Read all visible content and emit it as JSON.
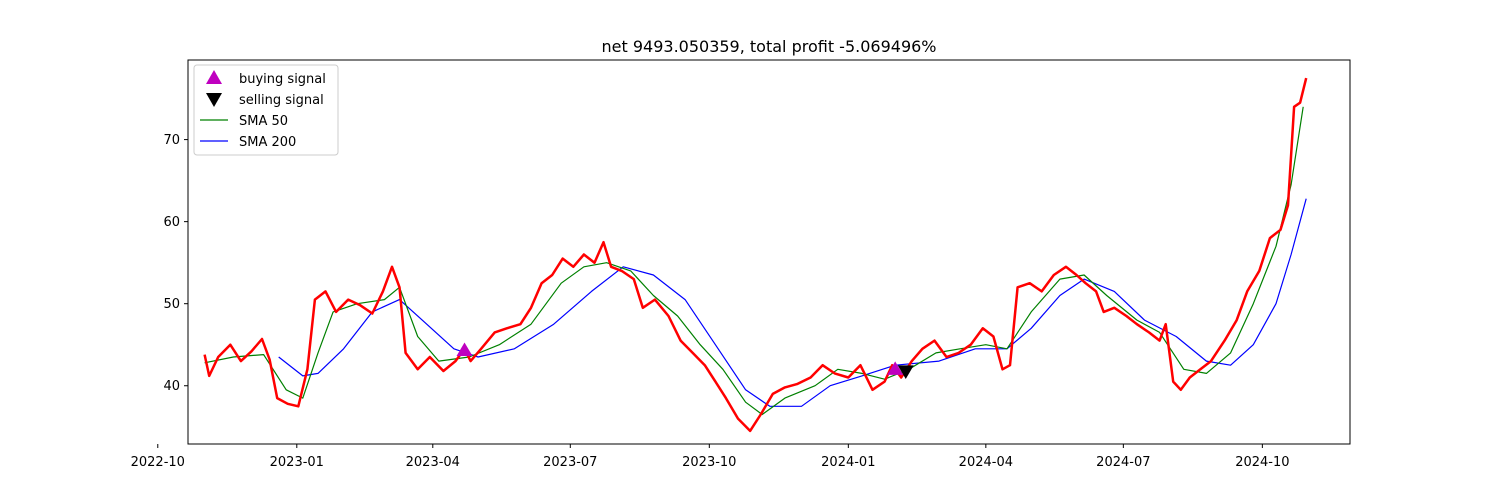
{
  "chart_data": {
    "type": "line",
    "title": "net 9493.050359, total profit -5.069496%",
    "xlabel": "",
    "ylabel": "",
    "xlim": [
      "2022-10-21",
      "2024-11-28"
    ],
    "ylim": [
      32.9,
      79.7
    ],
    "x_ticks": [
      "2022-10",
      "2023-01",
      "2023-04",
      "2023-07",
      "2023-10",
      "2024-01",
      "2024-04",
      "2024-07",
      "2024-10"
    ],
    "y_ticks": [
      40,
      50,
      60,
      70
    ],
    "grid": false,
    "legend": {
      "position": "upper-left",
      "entries": [
        {
          "label": "buying signal",
          "kind": "marker-up",
          "color": "#bf00bf"
        },
        {
          "label": "selling signal",
          "kind": "marker-down",
          "color": "#000000"
        },
        {
          "label": "SMA 50",
          "kind": "line",
          "color": "#008000"
        },
        {
          "label": "SMA 200",
          "kind": "line",
          "color": "#0000ff"
        }
      ]
    },
    "series": [
      {
        "kind": "price",
        "color": "#ff0000",
        "points": [
          [
            "2022-11-01",
            43.8
          ],
          [
            "2022-11-04",
            41.2
          ],
          [
            "2022-11-10",
            43.5
          ],
          [
            "2022-11-18",
            45.0
          ],
          [
            "2022-11-25",
            43.0
          ],
          [
            "2022-12-02",
            44.2
          ],
          [
            "2022-12-09",
            45.7
          ],
          [
            "2022-12-14",
            43.2
          ],
          [
            "2022-12-19",
            38.5
          ],
          [
            "2022-12-26",
            37.8
          ],
          [
            "2023-01-02",
            37.5
          ],
          [
            "2023-01-08",
            42.0
          ],
          [
            "2023-01-13",
            50.5
          ],
          [
            "2023-01-20",
            51.5
          ],
          [
            "2023-01-27",
            49.0
          ],
          [
            "2023-02-04",
            50.5
          ],
          [
            "2023-02-12",
            49.8
          ],
          [
            "2023-02-20",
            48.8
          ],
          [
            "2023-02-27",
            51.5
          ],
          [
            "2023-03-05",
            54.5
          ],
          [
            "2023-03-10",
            52.0
          ],
          [
            "2023-03-14",
            44.0
          ],
          [
            "2023-03-22",
            42.0
          ],
          [
            "2023-03-30",
            43.5
          ],
          [
            "2023-04-08",
            41.8
          ],
          [
            "2023-04-16",
            43.0
          ],
          [
            "2023-04-22",
            44.5
          ],
          [
            "2023-04-26",
            43.0
          ],
          [
            "2023-05-03",
            44.5
          ],
          [
            "2023-05-12",
            46.5
          ],
          [
            "2023-05-20",
            47.0
          ],
          [
            "2023-05-29",
            47.5
          ],
          [
            "2023-06-05",
            49.5
          ],
          [
            "2023-06-12",
            52.5
          ],
          [
            "2023-06-19",
            53.5
          ],
          [
            "2023-06-26",
            55.5
          ],
          [
            "2023-07-03",
            54.5
          ],
          [
            "2023-07-10",
            56.0
          ],
          [
            "2023-07-17",
            55.0
          ],
          [
            "2023-07-23",
            57.5
          ],
          [
            "2023-07-28",
            54.5
          ],
          [
            "2023-08-04",
            54.0
          ],
          [
            "2023-08-12",
            53.0
          ],
          [
            "2023-08-18",
            49.5
          ],
          [
            "2023-08-26",
            50.5
          ],
          [
            "2023-09-04",
            48.5
          ],
          [
            "2023-09-12",
            45.5
          ],
          [
            "2023-09-20",
            44.0
          ],
          [
            "2023-09-28",
            42.5
          ],
          [
            "2023-10-05",
            40.5
          ],
          [
            "2023-10-12",
            38.5
          ],
          [
            "2023-10-20",
            36.0
          ],
          [
            "2023-10-28",
            34.5
          ],
          [
            "2023-11-04",
            36.5
          ],
          [
            "2023-11-12",
            39.0
          ],
          [
            "2023-11-20",
            39.8
          ],
          [
            "2023-11-28",
            40.2
          ],
          [
            "2023-12-07",
            41.0
          ],
          [
            "2023-12-15",
            42.5
          ],
          [
            "2023-12-23",
            41.5
          ],
          [
            "2024-01-01",
            41.0
          ],
          [
            "2024-01-09",
            42.5
          ],
          [
            "2024-01-17",
            39.5
          ],
          [
            "2024-01-25",
            40.5
          ],
          [
            "2024-01-30",
            42.5
          ],
          [
            "2024-02-05",
            41.0
          ],
          [
            "2024-02-12",
            43.0
          ],
          [
            "2024-02-19",
            44.5
          ],
          [
            "2024-02-27",
            45.5
          ],
          [
            "2024-03-06",
            43.5
          ],
          [
            "2024-03-14",
            44.0
          ],
          [
            "2024-03-22",
            45.0
          ],
          [
            "2024-03-30",
            47.0
          ],
          [
            "2024-04-06",
            46.0
          ],
          [
            "2024-04-12",
            42.0
          ],
          [
            "2024-04-17",
            42.5
          ],
          [
            "2024-04-22",
            52.0
          ],
          [
            "2024-04-30",
            52.5
          ],
          [
            "2024-05-08",
            51.5
          ],
          [
            "2024-05-16",
            53.5
          ],
          [
            "2024-05-24",
            54.5
          ],
          [
            "2024-05-31",
            53.5
          ],
          [
            "2024-06-06",
            52.5
          ],
          [
            "2024-06-13",
            51.5
          ],
          [
            "2024-06-18",
            49.0
          ],
          [
            "2024-06-25",
            49.5
          ],
          [
            "2024-07-03",
            48.5
          ],
          [
            "2024-07-10",
            47.5
          ],
          [
            "2024-07-18",
            46.5
          ],
          [
            "2024-07-25",
            45.5
          ],
          [
            "2024-07-29",
            47.5
          ],
          [
            "2024-08-03",
            40.5
          ],
          [
            "2024-08-08",
            39.5
          ],
          [
            "2024-08-14",
            41.0
          ],
          [
            "2024-08-21",
            42.0
          ],
          [
            "2024-08-28",
            43.0
          ],
          [
            "2024-09-06",
            45.5
          ],
          [
            "2024-09-14",
            48.0
          ],
          [
            "2024-09-21",
            51.5
          ],
          [
            "2024-09-29",
            54.0
          ],
          [
            "2024-10-06",
            58.0
          ],
          [
            "2024-10-13",
            59.0
          ],
          [
            "2024-10-18",
            62.0
          ],
          [
            "2024-10-22",
            74.0
          ],
          [
            "2024-10-26",
            74.5
          ],
          [
            "2024-10-30",
            77.5
          ]
        ]
      },
      {
        "name": "SMA 50",
        "color": "#008000",
        "points": [
          [
            "2022-11-01",
            42.8
          ],
          [
            "2022-11-20",
            43.5
          ],
          [
            "2022-12-10",
            43.8
          ],
          [
            "2022-12-25",
            39.5
          ],
          [
            "2023-01-05",
            38.5
          ],
          [
            "2023-01-15",
            44.0
          ],
          [
            "2023-01-25",
            49.0
          ],
          [
            "2023-02-10",
            50.0
          ],
          [
            "2023-02-28",
            50.5
          ],
          [
            "2023-03-10",
            52.0
          ],
          [
            "2023-03-22",
            46.0
          ],
          [
            "2023-04-05",
            43.0
          ],
          [
            "2023-04-25",
            43.5
          ],
          [
            "2023-05-15",
            45.0
          ],
          [
            "2023-06-05",
            47.5
          ],
          [
            "2023-06-25",
            52.5
          ],
          [
            "2023-07-10",
            54.5
          ],
          [
            "2023-07-25",
            55.0
          ],
          [
            "2023-08-10",
            54.0
          ],
          [
            "2023-08-25",
            51.0
          ],
          [
            "2023-09-10",
            48.5
          ],
          [
            "2023-09-25",
            45.0
          ],
          [
            "2023-10-10",
            42.0
          ],
          [
            "2023-10-25",
            38.0
          ],
          [
            "2023-11-05",
            36.5
          ],
          [
            "2023-11-20",
            38.5
          ],
          [
            "2023-12-10",
            40.0
          ],
          [
            "2023-12-25",
            42.0
          ],
          [
            "2024-01-10",
            41.5
          ],
          [
            "2024-01-25",
            40.8
          ],
          [
            "2024-02-10",
            42.0
          ],
          [
            "2024-02-28",
            44.0
          ],
          [
            "2024-03-15",
            44.5
          ],
          [
            "2024-04-01",
            45.0
          ],
          [
            "2024-04-15",
            44.5
          ],
          [
            "2024-05-01",
            49.0
          ],
          [
            "2024-05-20",
            53.0
          ],
          [
            "2024-06-05",
            53.5
          ],
          [
            "2024-06-20",
            51.0
          ],
          [
            "2024-07-10",
            48.0
          ],
          [
            "2024-07-25",
            46.5
          ],
          [
            "2024-08-10",
            42.0
          ],
          [
            "2024-08-25",
            41.5
          ],
          [
            "2024-09-10",
            44.0
          ],
          [
            "2024-09-25",
            50.0
          ],
          [
            "2024-10-10",
            57.0
          ],
          [
            "2024-10-20",
            64.5
          ],
          [
            "2024-10-28",
            74.0
          ]
        ]
      },
      {
        "name": "SMA 200",
        "color": "#0000ff",
        "points": [
          [
            "2022-12-20",
            43.5
          ],
          [
            "2023-01-05",
            41.2
          ],
          [
            "2023-01-15",
            41.5
          ],
          [
            "2023-02-01",
            44.5
          ],
          [
            "2023-02-20",
            49.0
          ],
          [
            "2023-03-10",
            50.5
          ],
          [
            "2023-03-25",
            48.0
          ],
          [
            "2023-04-15",
            44.5
          ],
          [
            "2023-05-01",
            43.5
          ],
          [
            "2023-05-25",
            44.5
          ],
          [
            "2023-06-20",
            47.5
          ],
          [
            "2023-07-15",
            51.5
          ],
          [
            "2023-08-05",
            54.5
          ],
          [
            "2023-08-25",
            53.5
          ],
          [
            "2023-09-15",
            50.5
          ],
          [
            "2023-10-05",
            45.0
          ],
          [
            "2023-10-25",
            39.5
          ],
          [
            "2023-11-10",
            37.5
          ],
          [
            "2023-12-01",
            37.5
          ],
          [
            "2023-12-20",
            40.0
          ],
          [
            "2024-01-10",
            41.2
          ],
          [
            "2024-02-01",
            42.5
          ],
          [
            "2024-03-01",
            43.0
          ],
          [
            "2024-03-25",
            44.5
          ],
          [
            "2024-04-15",
            44.5
          ],
          [
            "2024-05-01",
            47.0
          ],
          [
            "2024-05-20",
            51.0
          ],
          [
            "2024-06-05",
            53.0
          ],
          [
            "2024-06-25",
            51.5
          ],
          [
            "2024-07-15",
            48.0
          ],
          [
            "2024-08-05",
            46.0
          ],
          [
            "2024-08-25",
            43.0
          ],
          [
            "2024-09-10",
            42.5
          ],
          [
            "2024-09-25",
            45.0
          ],
          [
            "2024-10-10",
            50.0
          ],
          [
            "2024-10-20",
            56.0
          ],
          [
            "2024-10-30",
            62.8
          ]
        ]
      }
    ],
    "signals": [
      {
        "kind": "buy",
        "x": "2023-04-22",
        "y": 44.3,
        "color": "#bf00bf"
      },
      {
        "kind": "buy",
        "x": "2024-02-01",
        "y": 42.0,
        "color": "#bf00bf"
      },
      {
        "kind": "sell",
        "x": "2024-02-08",
        "y": 41.8,
        "color": "#000000"
      }
    ]
  }
}
